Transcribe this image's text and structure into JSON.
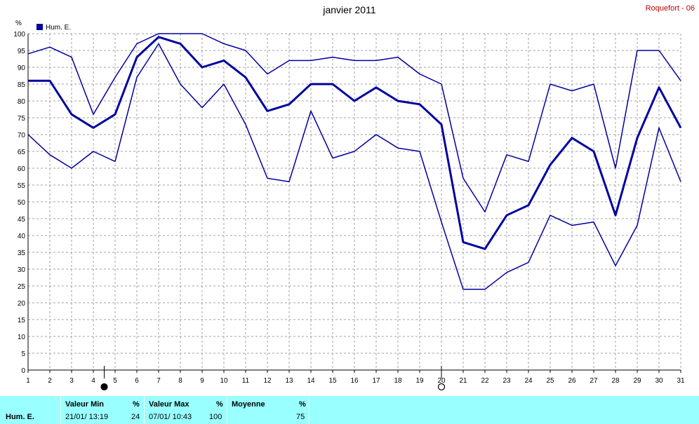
{
  "title": "janvier 2011",
  "station": "Roquefort - 06",
  "unit_label": "%",
  "legend_label": "Hum. E.",
  "colors": {
    "series": "#0000a0",
    "grid": "#a0a0a0",
    "footer_bg": "#99ffff",
    "station": "#c00000"
  },
  "moon_phases": [
    {
      "day": 4.5,
      "icon": "full-moon-icon"
    },
    {
      "day": 20,
      "icon": "new-moon-icon"
    }
  ],
  "chart_data": {
    "type": "line",
    "title": "janvier 2011",
    "ylabel": "%",
    "xlim": [
      1,
      31
    ],
    "ylim": [
      0,
      100
    ],
    "x": [
      1,
      2,
      3,
      4,
      5,
      6,
      7,
      8,
      9,
      10,
      11,
      12,
      13,
      14,
      15,
      16,
      17,
      18,
      19,
      20,
      21,
      22,
      23,
      24,
      25,
      26,
      27,
      28,
      29,
      30,
      31
    ],
    "y_ticks": [
      0,
      5,
      10,
      15,
      20,
      25,
      30,
      35,
      40,
      45,
      50,
      55,
      60,
      65,
      70,
      75,
      80,
      85,
      90,
      95,
      100
    ],
    "grid": true,
    "legend_position": "top-left",
    "series": [
      {
        "role": "max",
        "values": [
          94,
          96,
          93,
          76,
          87,
          97,
          100,
          100,
          100,
          97,
          95,
          88,
          92,
          92,
          93,
          92,
          92,
          93,
          88,
          85,
          57,
          47,
          64,
          62,
          85,
          83,
          85,
          60,
          95,
          95,
          86
        ]
      },
      {
        "name": "Hum. E.",
        "role": "mean",
        "values": [
          86,
          86,
          76,
          72,
          76,
          93,
          99,
          97,
          90,
          92,
          87,
          77,
          79,
          85,
          85,
          80,
          84,
          80,
          79,
          73,
          38,
          36,
          46,
          49,
          61,
          69,
          65,
          46,
          69,
          84,
          72
        ]
      },
      {
        "role": "min",
        "values": [
          70,
          64,
          60,
          65,
          62,
          87,
          97,
          85,
          78,
          85,
          73,
          57,
          56,
          77,
          63,
          65,
          70,
          66,
          65,
          44,
          24,
          24,
          29,
          32,
          46,
          43,
          44,
          31,
          43,
          72,
          56
        ]
      }
    ]
  },
  "footer": {
    "row_label": "Hum. E.",
    "min": {
      "header": "Valeur Min",
      "unit": "%",
      "date": "21/01/ 13:19",
      "value": "24"
    },
    "max": {
      "header": "Valeur Max",
      "unit": "%",
      "date": "07/01/ 10:43",
      "value": "100"
    },
    "avg": {
      "header": "Moyenne",
      "unit": "%",
      "value": "75"
    }
  }
}
